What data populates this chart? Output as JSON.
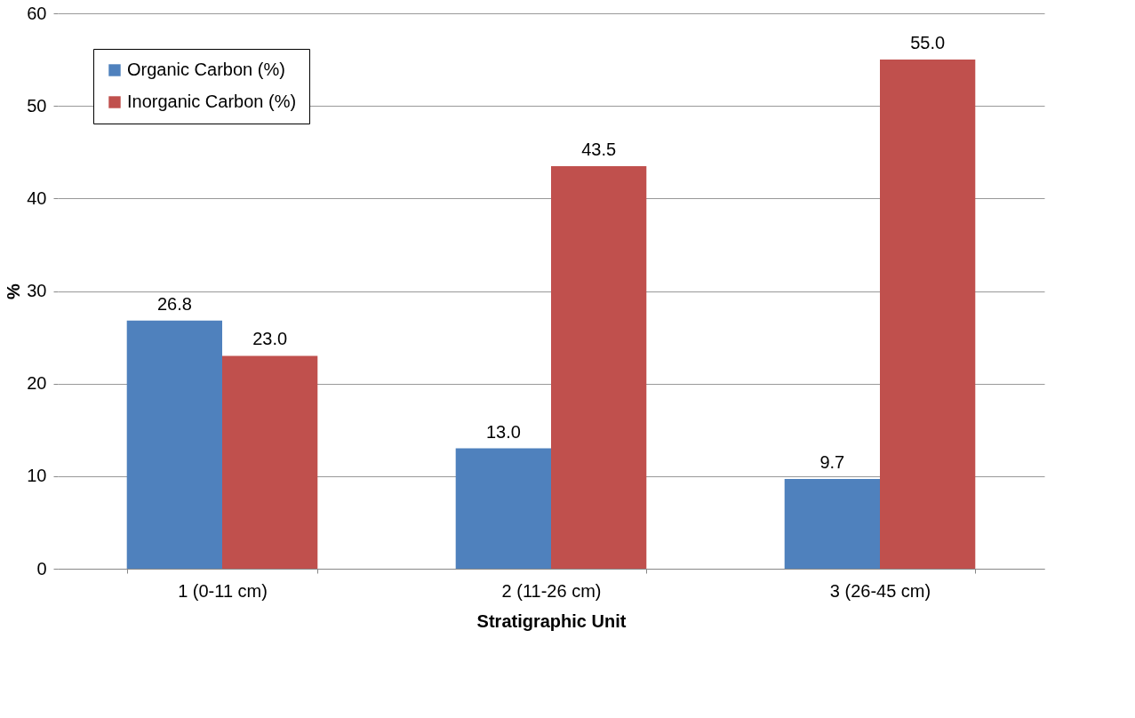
{
  "chart_data": {
    "type": "bar",
    "xlabel": "Stratigraphic Unit",
    "ylabel": "%",
    "categories": [
      "1 (0-11 cm)",
      "2 (11-26 cm)",
      "3 (26-45 cm)"
    ],
    "series": [
      {
        "name": "Organic Carbon (%)",
        "color": "#4f81bd",
        "values": [
          26.8,
          13.0,
          9.7
        ],
        "value_labels": [
          "26.8",
          "13.0",
          "9.7"
        ]
      },
      {
        "name": "Inorganic Carbon (%)",
        "color": "#c0504d",
        "values": [
          23.0,
          43.5,
          55.0
        ],
        "value_labels": [
          "23.0",
          "43.5",
          "55.0"
        ]
      }
    ],
    "ylim": [
      0,
      60
    ],
    "yticks": [
      0,
      10,
      20,
      30,
      40,
      50,
      60
    ],
    "grid": "y",
    "legend": "top left"
  }
}
